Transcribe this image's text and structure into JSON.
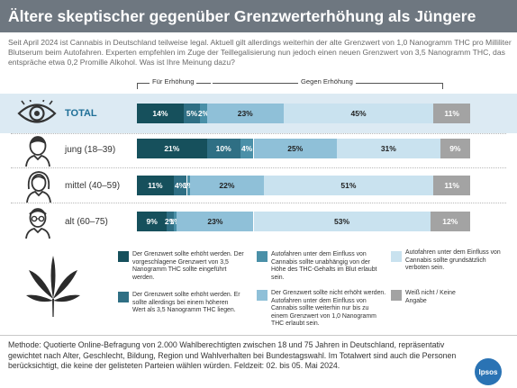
{
  "title": "Ältere skeptischer gegenüber Grenzwerterhöhung als Jüngere",
  "intro": "Seit April 2024 ist Cannabis in Deutschland teilweise legal. Aktuell gilt allerdings weiterhin der alte Grenzwert von 1,0 Nanogramm THC pro Milliliter Blutserum beim Autofahren. Experten empfehlen im Zuge der Teillegalisierung nun jedoch einen neuen Grenzwert von 3,5 Nanogramm THC, das entspräche etwa 0,2 Promille Alkohol. Was ist Ihre Meinung dazu?",
  "brackets": {
    "for_label": "Für Erhöhung",
    "against_label": "Gegen Erhöhung"
  },
  "colors": {
    "c1": "#16505c",
    "c2": "#2f6f84",
    "c3": "#4a90a8",
    "c4": "#8fc0d8",
    "c5": "#c9e2ef",
    "c6": "#a3a3a3",
    "highlight_row": "#dceaf3",
    "total_label": "#1f6f97",
    "title_bg": "#6e7780"
  },
  "chart_data": {
    "type": "bar",
    "orientation": "horizontal",
    "stacked": true,
    "categories": [
      "TOTAL",
      "jung (18–39)",
      "mittel (40–59)",
      "alt (60–75)"
    ],
    "icons": [
      "eye-icon",
      "young-person-icon",
      "middle-aged-person-icon",
      "elderly-person-icon"
    ],
    "series": [
      {
        "name": "Der Grenzwert sollte erhöht werden. Der vorgeschlagene Grenzwert von 3,5 Nanogramm THC sollte eingeführt werden.",
        "values": [
          14,
          21,
          11,
          9
        ],
        "labels": [
          "14%",
          "21%",
          "11%",
          "9%"
        ]
      },
      {
        "name": "Der Grenzwert sollte erhöht werden. Er sollte allerdings bei einem höheren Wert als 3,5 Nanogramm THC liegen.",
        "values": [
          5,
          10,
          4,
          2
        ],
        "labels": [
          "5%",
          "10%",
          "4%",
          "2%"
        ]
      },
      {
        "name": "Autofahren unter dem Einfluss von Cannabis sollte unabhängig von der Höhe des THC-Gehalts im Blut erlaubt sein.",
        "values": [
          2,
          4,
          1,
          1
        ],
        "labels": [
          "2%",
          "4%",
          "1%",
          "1%"
        ]
      },
      {
        "name": "Der Grenzwert sollte nicht erhöht werden. Autofahren unter dem Einfluss von Cannabis sollte weiterhin nur bis zu einem Grenzwert von 1,0 Nanogramm THC erlaubt sein.",
        "values": [
          23,
          25,
          22,
          23
        ],
        "labels": [
          "23%",
          "25%",
          "22%",
          "23%"
        ]
      },
      {
        "name": "Autofahren unter dem Einfluss von Cannabis sollte grundsätzlich verboten sein.",
        "values": [
          45,
          31,
          51,
          53
        ],
        "labels": [
          "45%",
          "31%",
          "51%",
          "53%"
        ]
      },
      {
        "name": "Weiß nicht / Keine Angabe",
        "values": [
          11,
          9,
          11,
          12
        ],
        "labels": [
          "11%",
          "9%",
          "11%",
          "12%"
        ]
      }
    ],
    "xlim": [
      0,
      100
    ]
  },
  "legend": {
    "l1": "Der Grenzwert sollte erhöht werden. Der vorgeschlagene Grenzwert von 3,5 Nanogramm THC sollte eingeführt werden.",
    "l2": "Der Grenzwert sollte erhöht werden. Er sollte allerdings bei einem höheren Wert als 3,5 Nanogramm THC liegen.",
    "l3": "Autofahren unter dem Einfluss von Cannabis sollte unabhängig von der Höhe des THC-Gehalts im Blut erlaubt sein.",
    "l4": "Der Grenzwert sollte nicht erhöht werden. Autofahren unter dem Einfluss von Cannabis sollte weiterhin nur bis zu einem Grenzwert von 1,0 Nanogramm THC erlaubt sein.",
    "l5": "Autofahren unter dem Einfluss von Cannabis sollte grundsätzlich verboten sein.",
    "l6": "Weiß nicht / Keine Angabe"
  },
  "methodology": "Methode: Quotierte Online-Befragung von 2.000 Wahlberechtigten zwischen 18 und 75 Jahren in Deutschland, repräsentativ gewichtet nach Alter, Geschlecht, Bildung, Region und Wahlverhalten bei Bundestagswahl. Im Totalwert sind auch die Personen berücksichtigt, die keine der gelisteten Parteien wählen würden. Feldzeit: 02. bis 05. Mai 2024.",
  "logo": {
    "text": "Ipsos",
    "icon": "ipsos-logo",
    "color": "#2a73b4"
  },
  "cannabis_icon": "cannabis-leaf-icon"
}
